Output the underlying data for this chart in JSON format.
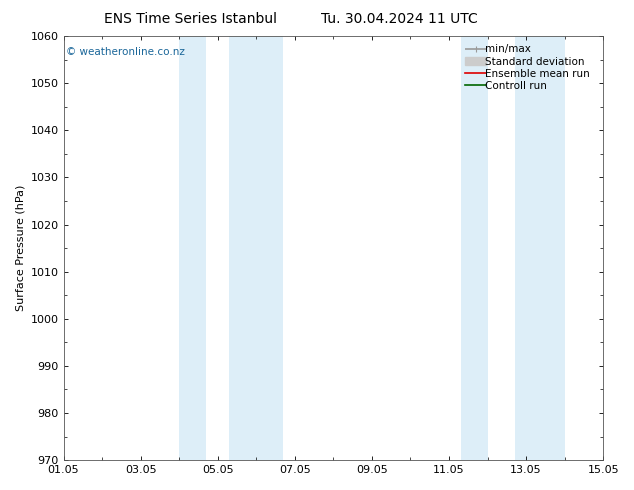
{
  "title_left": "ENS Time Series Istanbul",
  "title_right": "Tu. 30.04.2024 11 UTC",
  "ylabel": "Surface Pressure (hPa)",
  "ylim": [
    970,
    1060
  ],
  "yticks": [
    970,
    980,
    990,
    1000,
    1010,
    1020,
    1030,
    1040,
    1050,
    1060
  ],
  "xtick_labels": [
    "01.05",
    "03.05",
    "05.05",
    "07.05",
    "09.05",
    "11.05",
    "13.05",
    "15.05"
  ],
  "xtick_positions": [
    0,
    2,
    4,
    6,
    8,
    10,
    12,
    14
  ],
  "xlim": [
    0,
    14
  ],
  "shaded_bands": [
    {
      "start": 3.0,
      "end": 3.7,
      "color": "#ddeef8",
      "alpha": 1.0
    },
    {
      "start": 4.3,
      "end": 5.7,
      "color": "#ddeef8",
      "alpha": 1.0
    },
    {
      "start": 10.3,
      "end": 11.0,
      "color": "#ddeef8",
      "alpha": 1.0
    },
    {
      "start": 11.7,
      "end": 13.0,
      "color": "#ddeef8",
      "alpha": 1.0
    }
  ],
  "copyright_text": "© weatheronline.co.nz",
  "copyright_color": "#1a6699",
  "legend_items": [
    {
      "label": "min/max",
      "color": "#999999",
      "lw": 1.2
    },
    {
      "label": "Standard deviation",
      "color": "#cccccc",
      "lw": 5
    },
    {
      "label": "Ensemble mean run",
      "color": "#dd0000",
      "lw": 1.2
    },
    {
      "label": "Controll run",
      "color": "#006600",
      "lw": 1.2
    }
  ],
  "bg_color": "#ffffff",
  "plot_bg_color": "#ffffff",
  "border_color": "#555555",
  "title_fontsize": 10,
  "axis_label_fontsize": 8,
  "tick_fontsize": 8,
  "legend_fontsize": 7.5,
  "copyright_fontsize": 7.5
}
